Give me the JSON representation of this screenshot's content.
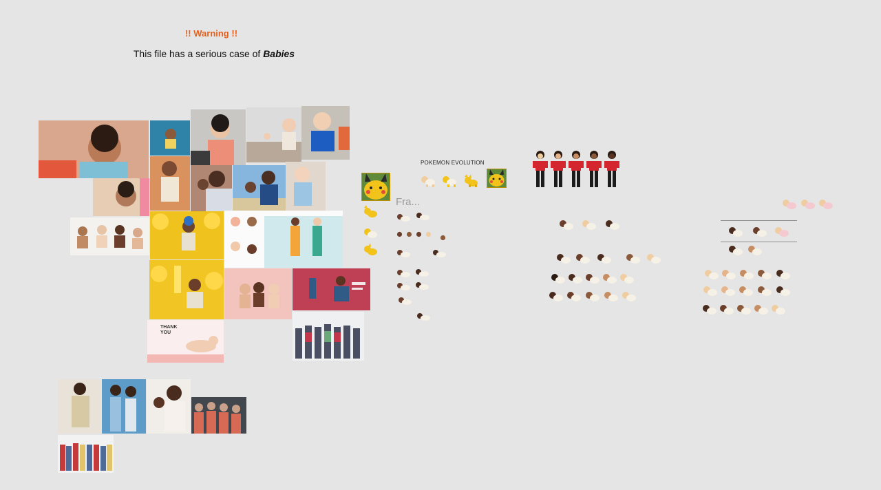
{
  "warning": {
    "title": "!! Warning !!",
    "text_prefix": "This file has a serious case of ",
    "text_emphasis": "Babies"
  },
  "canvas_labels": {
    "pokemon_evolution": "POKEMON EVOLUTION",
    "frame_label": "Fra..."
  },
  "photo_collage": {
    "count": 26,
    "thank_you_card": {
      "line1": "THANK",
      "line2": "YOU"
    }
  },
  "colors": {
    "background": "#e5e5e5",
    "warning_accent": "#e5611b",
    "pikachu_yellow": "#f2c31a",
    "shirt_red": "#d3262e"
  },
  "icons": {
    "baby": "crawling-baby-emoji",
    "cat": "cat-emoji",
    "pikachu": "pikachu-emoji",
    "woman": "standing-woman-emoji"
  }
}
